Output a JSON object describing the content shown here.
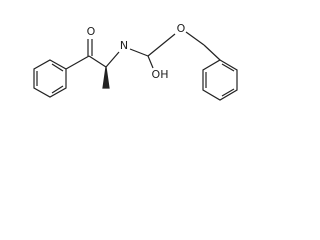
{
  "atoms": [
    {
      "label": "O"
    },
    {
      "label": "N"
    },
    {
      "label": "O"
    },
    {
      "label": "OH"
    }
  ]
}
